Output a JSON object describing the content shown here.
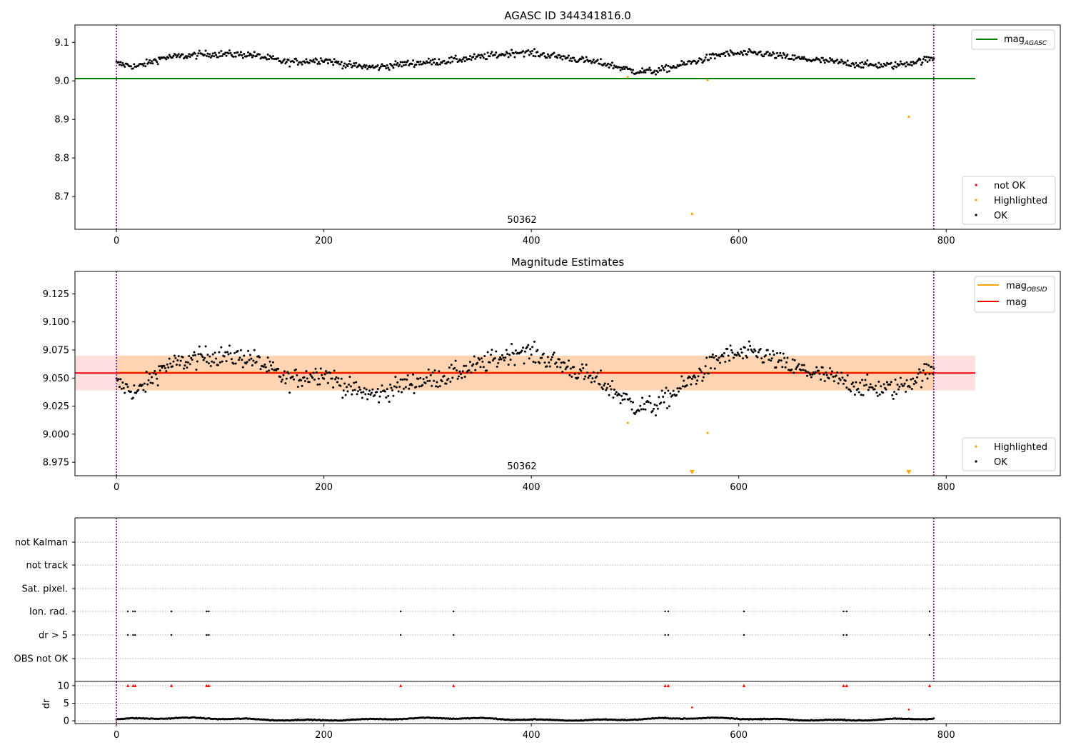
{
  "figure": {
    "panel1_title": "AGASC ID 344341816.0",
    "panel2_title": "Magnitude Estimates",
    "obsid_label": "50362"
  },
  "chart_data": [
    {
      "type": "scatter",
      "title": "AGASC ID 344341816.0",
      "xlim": [
        -40,
        910
      ],
      "ylim": [
        8.615,
        9.145
      ],
      "xticks": [
        0,
        200,
        400,
        600,
        800
      ],
      "yticks": [
        8.7,
        8.8,
        8.9,
        9.0,
        9.1
      ],
      "ytick_labels": [
        "8.7",
        "8.8",
        "8.9",
        "9.0",
        "9.1"
      ],
      "vlines": [
        0,
        788
      ],
      "annotation": "50362",
      "lines": [
        {
          "name": "mag_AGASC",
          "y": 9.006,
          "x": [
            -40,
            828
          ],
          "color": "#008000"
        }
      ],
      "series": [
        {
          "name": "not OK",
          "color": "#ff0000",
          "points": []
        },
        {
          "name": "Highlighted",
          "color": "#ffa500",
          "points": [
            [
              493,
              9.01
            ],
            [
              570,
              9.002
            ],
            [
              764,
              8.907
            ],
            [
              555,
              8.655
            ]
          ]
        },
        {
          "name": "OK",
          "color": "#000000",
          "n_points": 788,
          "x_range": [
            0,
            788
          ]
        }
      ],
      "legend": {
        "upper-right": [
          "mag_AGASC"
        ],
        "lower-right": [
          "not OK",
          "Highlighted",
          "OK"
        ]
      }
    },
    {
      "type": "scatter",
      "title": "Magnitude Estimates",
      "xlim": [
        -40,
        910
      ],
      "ylim": [
        8.963,
        9.145
      ],
      "xticks": [
        0,
        200,
        400,
        600,
        800
      ],
      "yticks": [
        8.975,
        9.0,
        9.025,
        9.05,
        9.075,
        9.1,
        9.125
      ],
      "ytick_labels": [
        "8.975",
        "9.000",
        "9.025",
        "9.050",
        "9.075",
        "9.100",
        "9.125"
      ],
      "vlines": [
        0,
        788
      ],
      "annotation": "50362",
      "bands": [
        {
          "name": "mag_OBSID band",
          "y": [
            9.039,
            9.07
          ],
          "x": [
            0,
            788
          ],
          "color": "#ffa500",
          "alpha": 0.2
        },
        {
          "name": "mag band",
          "y": [
            9.039,
            9.07
          ],
          "x": [
            -40,
            828
          ],
          "color": "#ff0000",
          "alpha": 0.12
        }
      ],
      "lines": [
        {
          "name": "mag_OBSID",
          "y": 9.055,
          "x": [
            0,
            788
          ],
          "color": "#ffa500"
        },
        {
          "name": "mag",
          "y": 9.0545,
          "x": [
            -40,
            828
          ],
          "color": "#ff0000"
        }
      ],
      "series": [
        {
          "name": "Highlighted",
          "color": "#ffa500",
          "points": [
            [
              493,
              9.01
            ],
            [
              570,
              9.001
            ]
          ],
          "offscale_markers": [
            555,
            764
          ]
        },
        {
          "name": "OK",
          "color": "#000000",
          "n_points": 788,
          "x_range": [
            0,
            788
          ]
        }
      ],
      "legend": {
        "upper-right": [
          "mag_OBSID",
          "mag"
        ],
        "lower-right": [
          "Highlighted",
          "OK"
        ]
      }
    },
    {
      "type": "scatter",
      "title": "",
      "xlim": [
        -40,
        910
      ],
      "categories": [
        "not Kalman",
        "not track",
        "Sat. pixel.",
        "Ion. rad.",
        "dr > 5",
        "OBS not OK"
      ],
      "vlines": [
        0,
        788
      ],
      "flag_events": {
        "Ion. rad.": [
          11,
          16,
          18,
          53,
          87,
          89,
          274,
          325,
          529,
          532,
          605,
          701,
          704,
          784
        ],
        "dr > 5": [
          11,
          16,
          18,
          53,
          87,
          89,
          274,
          325,
          529,
          532,
          605,
          701,
          704,
          784
        ]
      }
    },
    {
      "type": "scatter",
      "title": "",
      "ylabel": "dr",
      "xlim": [
        -40,
        910
      ],
      "ylim": [
        -0.8,
        11.2
      ],
      "yticks": [
        0,
        5,
        10
      ],
      "ytick_labels": [
        "0",
        "5",
        "10"
      ],
      "xticks": [
        0,
        200,
        400,
        600,
        800
      ],
      "series": [
        {
          "name": "dr > 10 (clipped)",
          "color": "#ff0000",
          "marker": "triangle-up",
          "x": [
            11,
            16,
            18,
            53,
            87,
            89,
            274,
            325,
            529,
            532,
            605,
            701,
            704,
            784
          ],
          "y": 10
        },
        {
          "name": "dr highlighted",
          "color": "#ff0000",
          "points": [
            [
              555,
              3.8
            ],
            [
              764,
              3.2
            ]
          ]
        },
        {
          "name": "dr",
          "color": "#000000",
          "n_points": 788,
          "x_range": [
            0,
            788
          ],
          "y_range": [
            0.1,
            1.2
          ]
        }
      ]
    }
  ],
  "legend_labels": {
    "mag_base": "mag",
    "agasc_sub": "AGASC",
    "obsid_sub": "OBSID",
    "not_ok": "not OK",
    "highlighted": "Highlighted",
    "ok": "OK"
  }
}
